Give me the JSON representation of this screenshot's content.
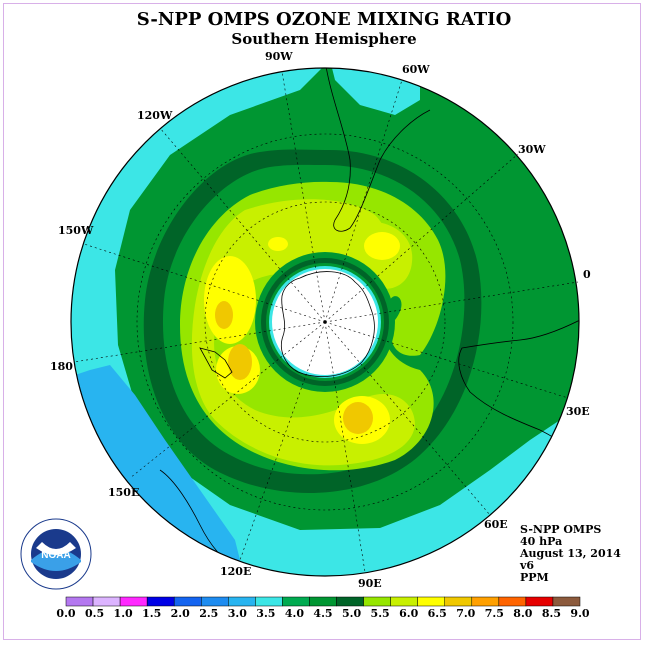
{
  "title": "S-NPP OMPS OZONE MIXING RATIO",
  "subtitle": "Southern Hemisphere",
  "longitude_labels": [
    "90W",
    "60W",
    "30W",
    "0",
    "30E",
    "60E",
    "90E",
    "120E",
    "150E",
    "180",
    "150W",
    "120W"
  ],
  "info": {
    "satellite": "S-NPP OMPS",
    "level": "40 hPa",
    "date": "August 13, 2014",
    "version": "v6",
    "unit": "PPM"
  },
  "logo": {
    "text": "NOAA",
    "ring_text": "NATIONAL OCEANIC AND ATMOSPHERIC ADMINISTRATION · U.S. DEPARTMENT OF COMMERCE"
  },
  "colorbar": {
    "ticks": [
      "0.0",
      "0.5",
      "1.0",
      "1.5",
      "2.0",
      "2.5",
      "3.0",
      "3.5",
      "4.0",
      "4.5",
      "5.0",
      "5.5",
      "6.0",
      "6.5",
      "7.0",
      "7.5",
      "8.0",
      "8.5",
      "9.0"
    ],
    "colors": [
      "#b478f0",
      "#dcb4ff",
      "#ff28ff",
      "#0000e6",
      "#1464f0",
      "#1e8cf0",
      "#28b4f0",
      "#3ce6e6",
      "#00aa50",
      "#009632",
      "#006428",
      "#96e600",
      "#c8f000",
      "#ffff00",
      "#f0c800",
      "#ffa000",
      "#ff6400",
      "#e60000",
      "#8c5a3c"
    ]
  }
}
